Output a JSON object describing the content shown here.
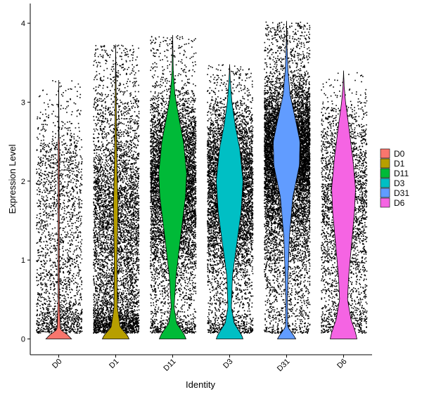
{
  "chart_data": {
    "type": "violin",
    "title": "",
    "xlabel": "Identity",
    "ylabel": "Expression Level",
    "ylim": [
      -0.2,
      4.25
    ],
    "yticks": [
      0,
      1,
      2,
      3,
      4
    ],
    "grid": false,
    "legend_position": "right",
    "categories": [
      "D0",
      "D1",
      "D11",
      "D3",
      "D31",
      "D6"
    ],
    "colors": [
      "#F8766D",
      "#B79F00",
      "#00BA38",
      "#00BFC4",
      "#619CFF",
      "#F564E3"
    ],
    "series": [
      {
        "name": "D0",
        "max": 3.28,
        "points": 2100,
        "zero_peak_width": 0.45,
        "profile": [
          [
            0,
            0.45
          ],
          [
            0.05,
            0.32
          ],
          [
            0.12,
            0.06
          ],
          [
            0.5,
            0.02
          ],
          [
            1.5,
            0.02
          ],
          [
            2.5,
            0.02
          ],
          [
            2.55,
            0.01
          ],
          [
            3.28,
            0.0
          ]
        ]
      },
      {
        "name": "D1",
        "max": 3.73,
        "points": 5200,
        "zero_peak_width": 0.47,
        "profile": [
          [
            0,
            0.47
          ],
          [
            0.05,
            0.4
          ],
          [
            0.15,
            0.16
          ],
          [
            0.4,
            0.06
          ],
          [
            1.0,
            0.05
          ],
          [
            1.7,
            0.08
          ],
          [
            2.1,
            0.05
          ],
          [
            2.6,
            0.03
          ],
          [
            3.73,
            0.0
          ]
        ]
      },
      {
        "name": "D11",
        "max": 3.85,
        "points": 6800,
        "zero_peak_width": 0.47,
        "profile": [
          [
            0,
            0.47
          ],
          [
            0.06,
            0.4
          ],
          [
            0.2,
            0.14
          ],
          [
            0.4,
            0.05
          ],
          [
            0.8,
            0.12
          ],
          [
            1.3,
            0.28
          ],
          [
            1.8,
            0.45
          ],
          [
            2.1,
            0.49
          ],
          [
            2.5,
            0.38
          ],
          [
            2.8,
            0.22
          ],
          [
            3.1,
            0.08
          ],
          [
            3.4,
            0.02
          ],
          [
            3.85,
            0.0
          ]
        ]
      },
      {
        "name": "D3",
        "max": 3.48,
        "points": 6200,
        "zero_peak_width": 0.47,
        "profile": [
          [
            0,
            0.47
          ],
          [
            0.05,
            0.42
          ],
          [
            0.2,
            0.16
          ],
          [
            0.4,
            0.06
          ],
          [
            0.8,
            0.1
          ],
          [
            1.2,
            0.25
          ],
          [
            1.6,
            0.4
          ],
          [
            2.0,
            0.47
          ],
          [
            2.4,
            0.36
          ],
          [
            2.7,
            0.2
          ],
          [
            3.0,
            0.08
          ],
          [
            3.3,
            0.02
          ],
          [
            3.48,
            0.0
          ]
        ]
      },
      {
        "name": "D31",
        "max": 4.03,
        "points": 9800,
        "zero_peak_width": 0.32,
        "profile": [
          [
            0,
            0.32
          ],
          [
            0.04,
            0.26
          ],
          [
            0.15,
            0.04
          ],
          [
            0.5,
            0.03
          ],
          [
            0.9,
            0.06
          ],
          [
            1.3,
            0.1
          ],
          [
            1.8,
            0.22
          ],
          [
            2.2,
            0.45
          ],
          [
            2.5,
            0.47
          ],
          [
            2.8,
            0.3
          ],
          [
            3.1,
            0.12
          ],
          [
            3.4,
            0.05
          ],
          [
            3.7,
            0.015
          ],
          [
            4.03,
            0.0
          ]
        ]
      },
      {
        "name": "D6",
        "max": 3.4,
        "points": 3000,
        "zero_peak_width": 0.47,
        "profile": [
          [
            0,
            0.47
          ],
          [
            0.08,
            0.42
          ],
          [
            0.25,
            0.26
          ],
          [
            0.5,
            0.14
          ],
          [
            0.8,
            0.18
          ],
          [
            1.2,
            0.28
          ],
          [
            1.6,
            0.38
          ],
          [
            1.9,
            0.42
          ],
          [
            2.3,
            0.32
          ],
          [
            2.7,
            0.18
          ],
          [
            3.0,
            0.07
          ],
          [
            3.2,
            0.02
          ],
          [
            3.4,
            0.0
          ]
        ]
      }
    ]
  }
}
